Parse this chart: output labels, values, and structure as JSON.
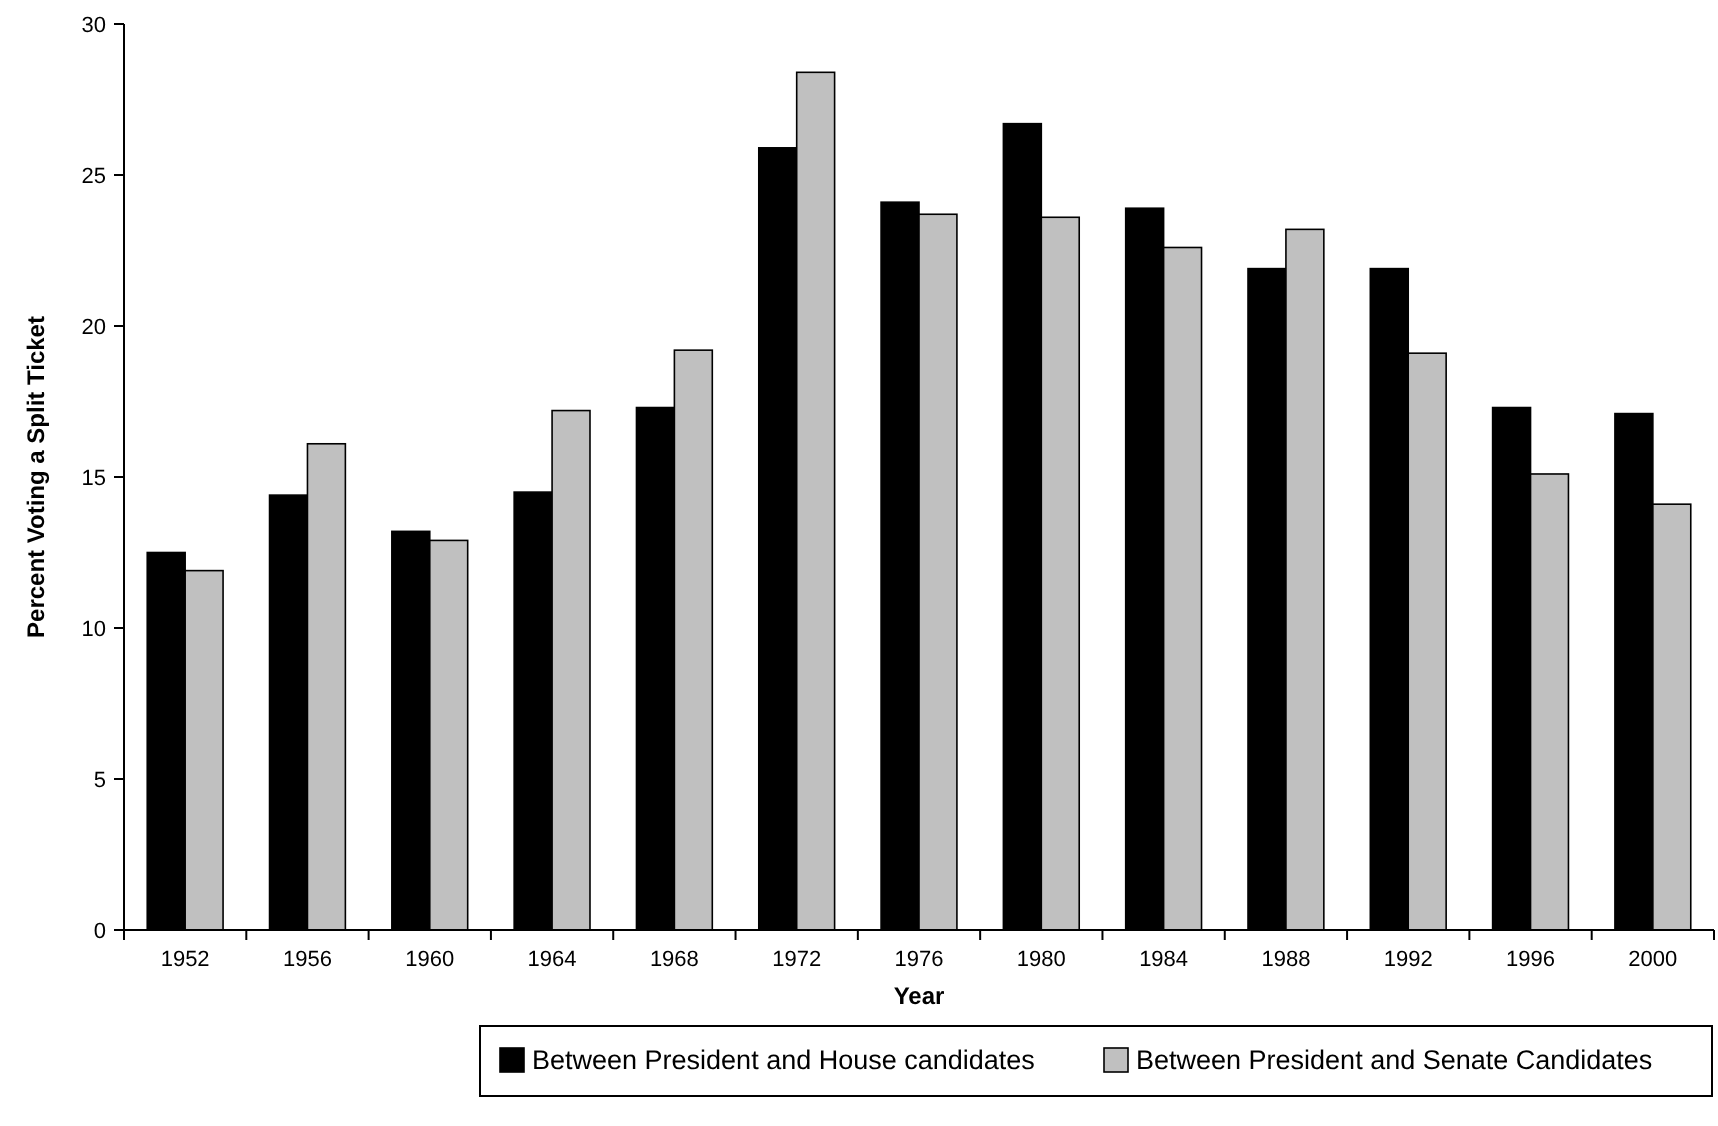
{
  "chart_data": {
    "type": "bar",
    "xlabel": "Year",
    "ylabel": "Percent Voting a Split Ticket",
    "categories": [
      "1952",
      "1956",
      "1960",
      "1964",
      "1968",
      "1972",
      "1976",
      "1980",
      "1984",
      "1988",
      "1992",
      "1996",
      "2000"
    ],
    "series": [
      {
        "name": "Between President and House candidates",
        "color": "#000000",
        "values": [
          12.5,
          14.4,
          13.2,
          14.5,
          17.3,
          25.9,
          24.1,
          26.7,
          23.9,
          21.9,
          21.9,
          17.3,
          17.1
        ]
      },
      {
        "name": "Between President and Senate Candidates",
        "color": "#c0c0c0",
        "values": [
          11.9,
          16.1,
          12.9,
          17.2,
          19.2,
          28.4,
          23.7,
          23.6,
          22.6,
          23.2,
          19.1,
          15.1,
          14.1
        ]
      }
    ],
    "ylim": [
      0,
      30
    ],
    "yticks": [
      0,
      5,
      10,
      15,
      20,
      25,
      30
    ],
    "grid": false,
    "legend": "bottom"
  }
}
